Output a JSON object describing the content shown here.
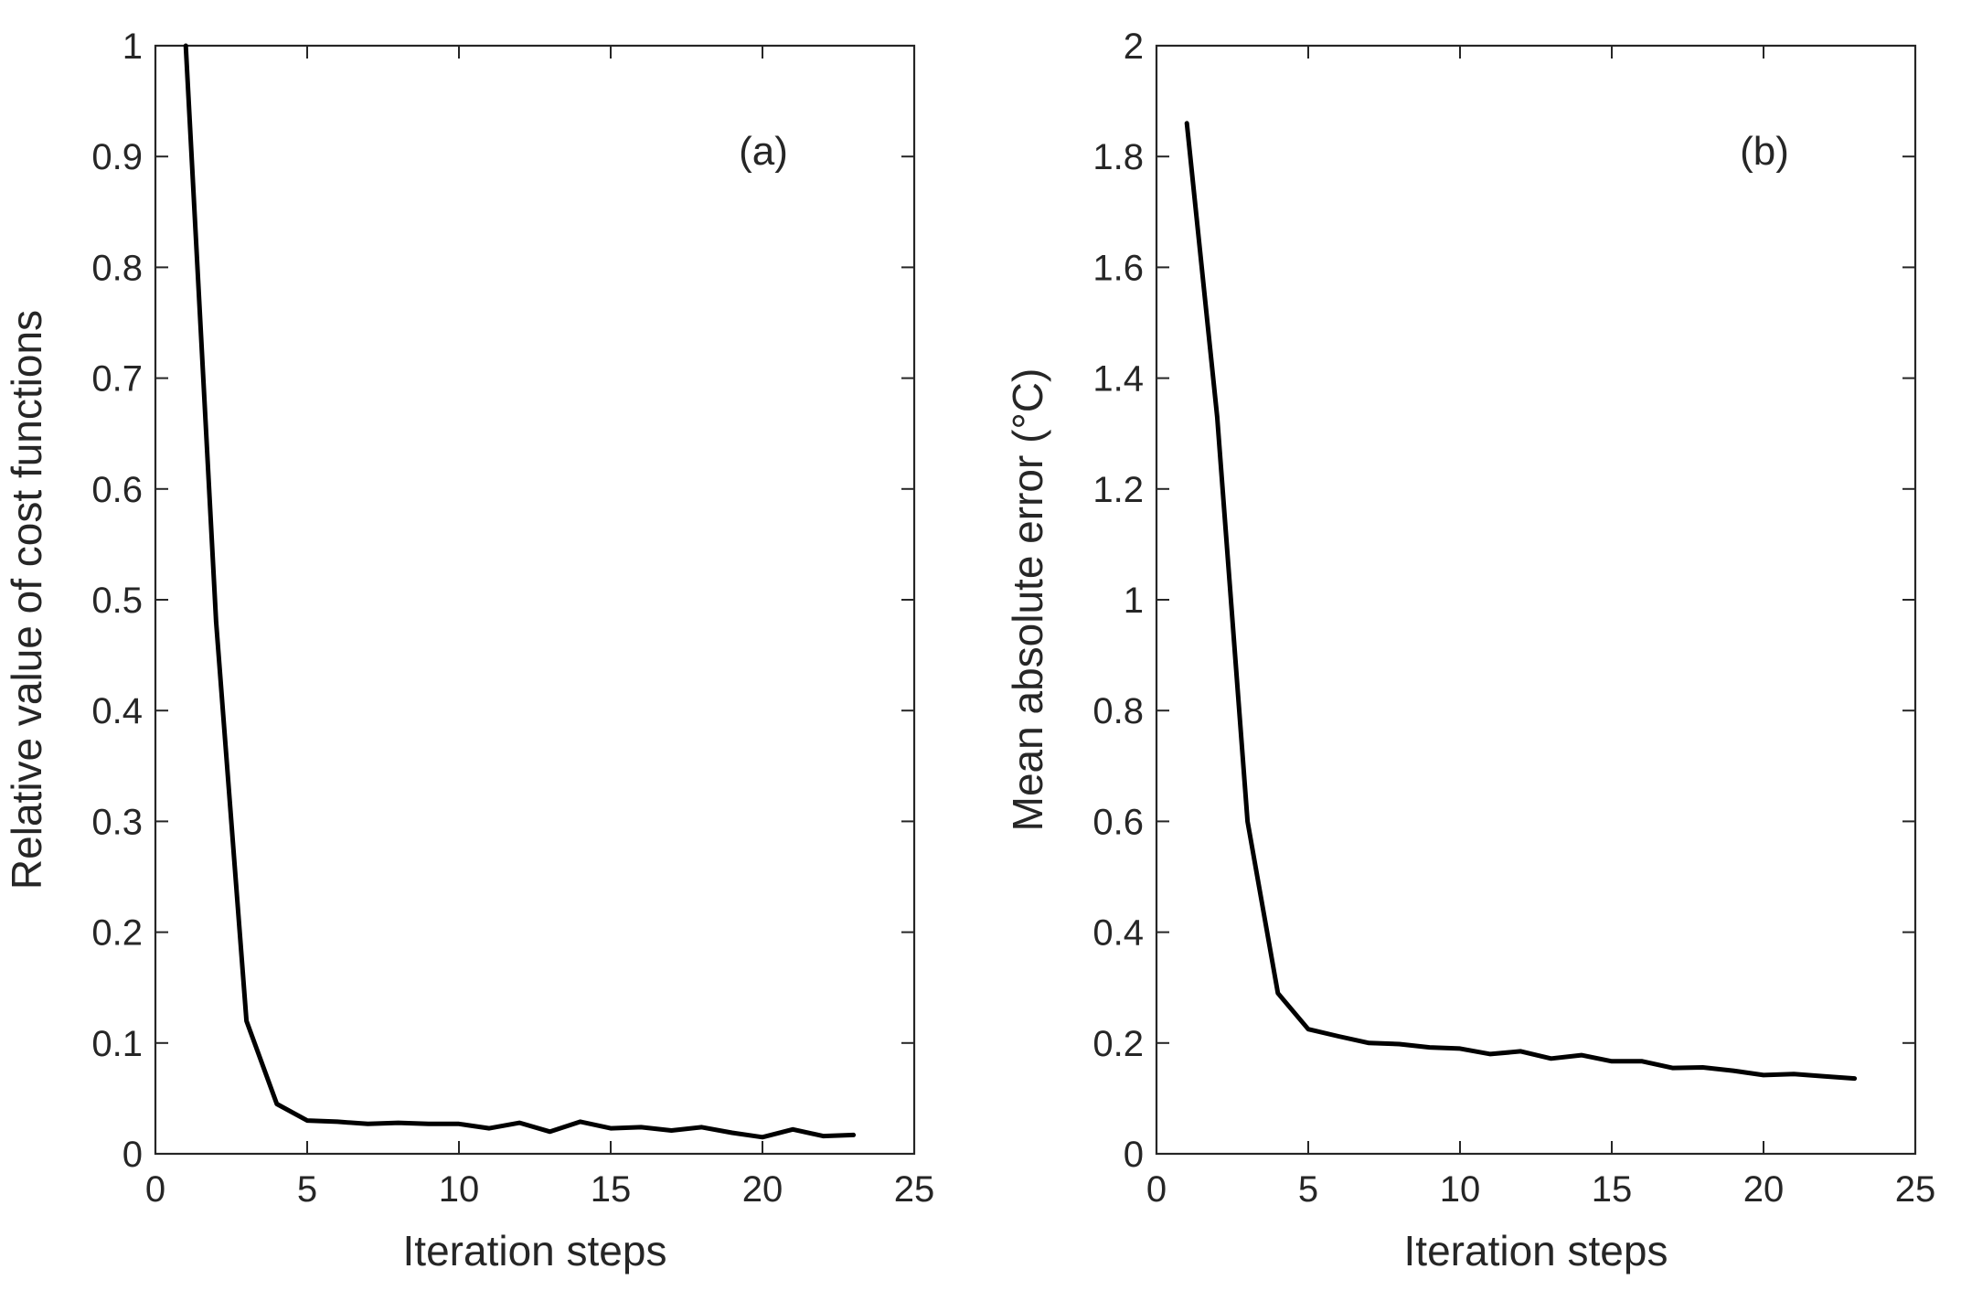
{
  "chart_data": [
    {
      "type": "line",
      "panel_label": "(a)",
      "xlabel": "Iteration steps",
      "ylabel": "Relative value of cost functions",
      "xlim": [
        0,
        25
      ],
      "ylim": [
        0,
        1
      ],
      "xticks": [
        0,
        5,
        10,
        15,
        20,
        25
      ],
      "yticks": [
        0,
        0.1,
        0.2,
        0.3,
        0.4,
        0.5,
        0.6,
        0.7,
        0.8,
        0.9,
        1
      ],
      "xtick_labels": [
        "0",
        "5",
        "10",
        "15",
        "20",
        "25"
      ],
      "ytick_labels": [
        "0",
        "0.1",
        "0.2",
        "0.3",
        "0.4",
        "0.5",
        "0.6",
        "0.7",
        "0.8",
        "0.9",
        "1"
      ],
      "grid": false,
      "series_color": "#000000",
      "x": [
        1,
        2,
        3,
        4,
        5,
        6,
        7,
        8,
        9,
        10,
        11,
        12,
        13,
        14,
        15,
        16,
        17,
        18,
        19,
        20,
        21,
        22,
        23
      ],
      "y": [
        1.0,
        0.48,
        0.12,
        0.045,
        0.03,
        0.029,
        0.027,
        0.028,
        0.027,
        0.027,
        0.023,
        0.028,
        0.02,
        0.029,
        0.023,
        0.024,
        0.021,
        0.024,
        0.019,
        0.015,
        0.022,
        0.016,
        0.017
      ]
    },
    {
      "type": "line",
      "panel_label": "(b)",
      "xlabel": "Iteration steps",
      "ylabel": "Mean absolute error (°C)",
      "xlim": [
        0,
        25
      ],
      "ylim": [
        0,
        2
      ],
      "xticks": [
        0,
        5,
        10,
        15,
        20,
        25
      ],
      "yticks": [
        0,
        0.2,
        0.4,
        0.6,
        0.8,
        1,
        1.2,
        1.4,
        1.6,
        1.8,
        2
      ],
      "xtick_labels": [
        "0",
        "5",
        "10",
        "15",
        "20",
        "25"
      ],
      "ytick_labels": [
        "0",
        "0.2",
        "0.4",
        "0.6",
        "0.8",
        "1",
        "1.2",
        "1.4",
        "1.6",
        "1.8",
        "2"
      ],
      "grid": false,
      "series_color": "#000000",
      "x": [
        1,
        2,
        3,
        4,
        5,
        6,
        7,
        8,
        9,
        10,
        11,
        12,
        13,
        14,
        15,
        16,
        17,
        18,
        19,
        20,
        21,
        22,
        23
      ],
      "y": [
        1.86,
        1.33,
        0.6,
        0.29,
        0.225,
        0.212,
        0.2,
        0.198,
        0.192,
        0.19,
        0.18,
        0.185,
        0.172,
        0.178,
        0.167,
        0.167,
        0.155,
        0.156,
        0.15,
        0.142,
        0.144,
        0.14,
        0.136
      ]
    }
  ]
}
